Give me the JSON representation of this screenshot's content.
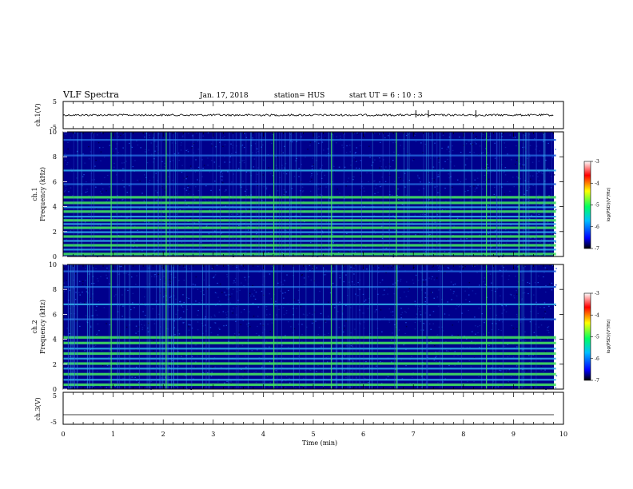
{
  "header": {
    "title": "VLF Spectra",
    "date": "Jan. 17, 2018",
    "station": "station= HUS",
    "start": "start  UT =   6  : 10 : 3"
  },
  "colors": {
    "background": "#00008c",
    "line_cyan": "#38b8f0",
    "line_green": "#40e060",
    "axis": "#000000"
  },
  "colormap": [
    "#000000",
    "#0000ff",
    "#00c0ff",
    "#00ff80",
    "#ffff00",
    "#ff0000",
    "#ffffff"
  ],
  "chart_data": [
    {
      "type": "line",
      "id": "ch1_waveform",
      "ylabel": "ch.1(V)",
      "ylim": [
        -5,
        5
      ],
      "yticks": [
        "5",
        "-5"
      ],
      "xlim": [
        0,
        10
      ],
      "series": [
        {
          "values_description": "noisy trace near 0 V",
          "mean": 0.0,
          "amplitude": 0.6
        }
      ],
      "spikes_min": [
        7.05,
        7.3,
        8.25
      ]
    },
    {
      "type": "heatmap",
      "id": "ch1_spectrogram",
      "ylabel_top": "ch.1",
      "ylabel": "Frequency (kHz)",
      "ylim": [
        0,
        10
      ],
      "yticks": [
        "0",
        "2",
        "4",
        "6",
        "8",
        "10"
      ],
      "xlim": [
        0,
        9.85
      ],
      "bands_khz": [
        {
          "f": 0.2,
          "level": 3
        },
        {
          "f": 0.55,
          "level": 2
        },
        {
          "f": 0.9,
          "level": 3
        },
        {
          "f": 1.25,
          "level": 2
        },
        {
          "f": 1.6,
          "level": 3
        },
        {
          "f": 1.95,
          "level": 2
        },
        {
          "f": 2.3,
          "level": 3
        },
        {
          "f": 2.6,
          "level": 2
        },
        {
          "f": 2.9,
          "level": 3
        },
        {
          "f": 3.2,
          "level": 2
        },
        {
          "f": 3.6,
          "level": 3
        },
        {
          "f": 3.95,
          "level": 2
        },
        {
          "f": 4.3,
          "level": 3
        },
        {
          "f": 4.75,
          "level": 3
        },
        {
          "f": 5.8,
          "level": 1
        },
        {
          "f": 6.9,
          "level": 2
        },
        {
          "f": 8.1,
          "level": 1
        },
        {
          "f": 9.35,
          "level": 1
        }
      ],
      "spikes_min": [
        0.95,
        2.05,
        4.2,
        5.35,
        6.65,
        8.45,
        9.1
      ],
      "colorbar": {
        "label": "log(PSD)(V²/Hz)",
        "ticks": [
          "-3",
          "-4",
          "-5",
          "-6",
          "-7"
        ]
      }
    },
    {
      "type": "heatmap",
      "id": "ch2_spectrogram",
      "ylabel_top": "ch.2",
      "ylabel": "Frequency (kHz)",
      "ylim": [
        0,
        10
      ],
      "yticks": [
        "0",
        "2",
        "4",
        "6",
        "8",
        "10"
      ],
      "xlim": [
        0,
        9.85
      ],
      "bands_khz": [
        {
          "f": 0.35,
          "level": 3
        },
        {
          "f": 0.75,
          "level": 2
        },
        {
          "f": 1.2,
          "level": 3
        },
        {
          "f": 1.65,
          "level": 2
        },
        {
          "f": 2.05,
          "level": 3
        },
        {
          "f": 2.45,
          "level": 2
        },
        {
          "f": 2.85,
          "level": 3
        },
        {
          "f": 3.25,
          "level": 2
        },
        {
          "f": 3.7,
          "level": 3
        },
        {
          "f": 4.15,
          "level": 3
        },
        {
          "f": 5.6,
          "level": 1
        },
        {
          "f": 6.8,
          "level": 2
        },
        {
          "f": 8.2,
          "level": 1
        },
        {
          "f": 9.45,
          "level": 1
        }
      ],
      "spikes_min": [
        0.95,
        2.05,
        4.2,
        5.35,
        6.65,
        8.45,
        9.1
      ],
      "colorbar": {
        "label": "log(PSD)(V²/Hz)",
        "ticks": [
          "-3",
          "-4",
          "-5",
          "-6",
          "-7"
        ]
      }
    },
    {
      "type": "line",
      "id": "ch3_waveform",
      "ylabel": "ch.3(V)",
      "ylim": [
        -5,
        5
      ],
      "yticks": [
        "5",
        "-5"
      ],
      "xlim": [
        0,
        10
      ],
      "series": [
        {
          "values_description": "flat line",
          "mean": -2.0,
          "amplitude": 0
        }
      ]
    }
  ],
  "x_axis": {
    "label": "Time (min)",
    "ticks": [
      "0",
      "1",
      "2",
      "3",
      "4",
      "5",
      "6",
      "7",
      "8",
      "9",
      "10"
    ],
    "xlim": [
      0,
      10
    ]
  }
}
